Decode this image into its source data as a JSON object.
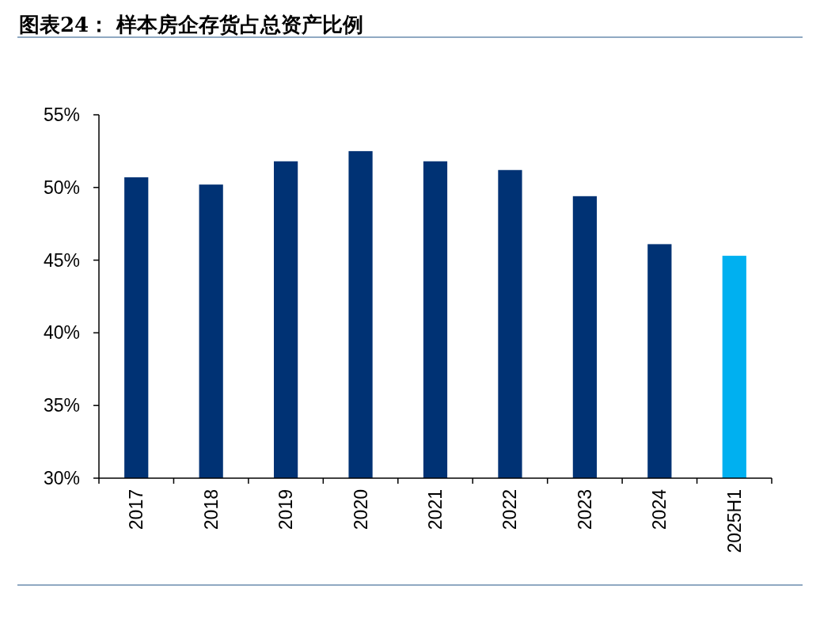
{
  "chart_data": {
    "type": "bar",
    "title": "图表24：  样本房企存货占总资产比例",
    "categories": [
      "2017",
      "2018",
      "2019",
      "2020",
      "2021",
      "2022",
      "2023",
      "2024",
      "2025H1"
    ],
    "values": [
      50.7,
      50.2,
      51.8,
      52.5,
      51.8,
      51.2,
      49.4,
      46.1,
      45.3
    ],
    "colors": [
      "#003274",
      "#003274",
      "#003274",
      "#003274",
      "#003274",
      "#003274",
      "#003274",
      "#003274",
      "#00b0f0"
    ],
    "ylim": [
      30,
      55
    ],
    "yticks": [
      {
        "value": 30,
        "label": "30%"
      },
      {
        "value": 35,
        "label": "35%"
      },
      {
        "value": 40,
        "label": "40%"
      },
      {
        "value": 45,
        "label": "45%"
      },
      {
        "value": 50,
        "label": "50%"
      },
      {
        "value": 55,
        "label": "55%"
      }
    ],
    "grid": false
  }
}
